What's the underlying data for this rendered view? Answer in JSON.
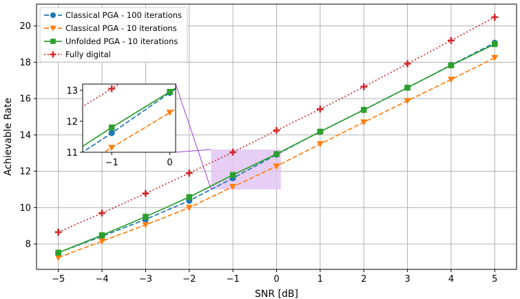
{
  "chart_data": {
    "type": "line",
    "title": "",
    "xlabel": "SNR [dB]",
    "ylabel": "Achievable Rate",
    "xlim": [
      -5.5,
      5.5
    ],
    "ylim": [
      6.6,
      21.2
    ],
    "x": [
      -5,
      -4,
      -3,
      -2,
      -1,
      0,
      1,
      2,
      3,
      4,
      5
    ],
    "xticks": [
      -5,
      -4,
      -3,
      -2,
      -1,
      0,
      1,
      2,
      3,
      4,
      5
    ],
    "yticks": [
      8,
      10,
      12,
      14,
      16,
      18,
      20
    ],
    "grid": true,
    "legend_position": "upper-left",
    "series": [
      {
        "name": "Classical PGA - 100 iterations",
        "color": "#1f77b4",
        "linestyle": "dashed",
        "marker": "circle",
        "values": [
          7.52,
          8.42,
          9.35,
          10.38,
          11.62,
          12.92,
          14.18,
          15.38,
          16.6,
          17.85,
          19.07
        ]
      },
      {
        "name": "Classical PGA - 10 iterations",
        "color": "#ff7f0e",
        "linestyle": "dashed",
        "marker": "triangle-down",
        "values": [
          7.25,
          8.15,
          9.05,
          10.0,
          11.15,
          12.28,
          13.5,
          14.7,
          15.88,
          17.05,
          18.25
        ]
      },
      {
        "name": "Unfolded PGA - 10 iterations",
        "color": "#2ca02c",
        "linestyle": "solid",
        "marker": "square",
        "values": [
          7.52,
          8.48,
          9.5,
          10.58,
          11.8,
          12.95,
          14.18,
          15.38,
          16.6,
          17.83,
          19.0
        ]
      },
      {
        "name": "Fully digital",
        "color": "#d62728",
        "linestyle": "dotted",
        "marker": "plus",
        "values": [
          8.65,
          9.7,
          10.78,
          11.9,
          13.05,
          14.25,
          15.42,
          16.65,
          17.92,
          19.2,
          20.48
        ]
      }
    ],
    "inset": {
      "xlim": [
        -1.5,
        0.1
      ],
      "ylim": [
        11.0,
        13.2
      ],
      "xticks": [
        -1,
        0
      ],
      "yticks": [
        11,
        12,
        13
      ],
      "highlight_color": "#e2c6f2",
      "connector_color": "#9a3fd6"
    }
  }
}
